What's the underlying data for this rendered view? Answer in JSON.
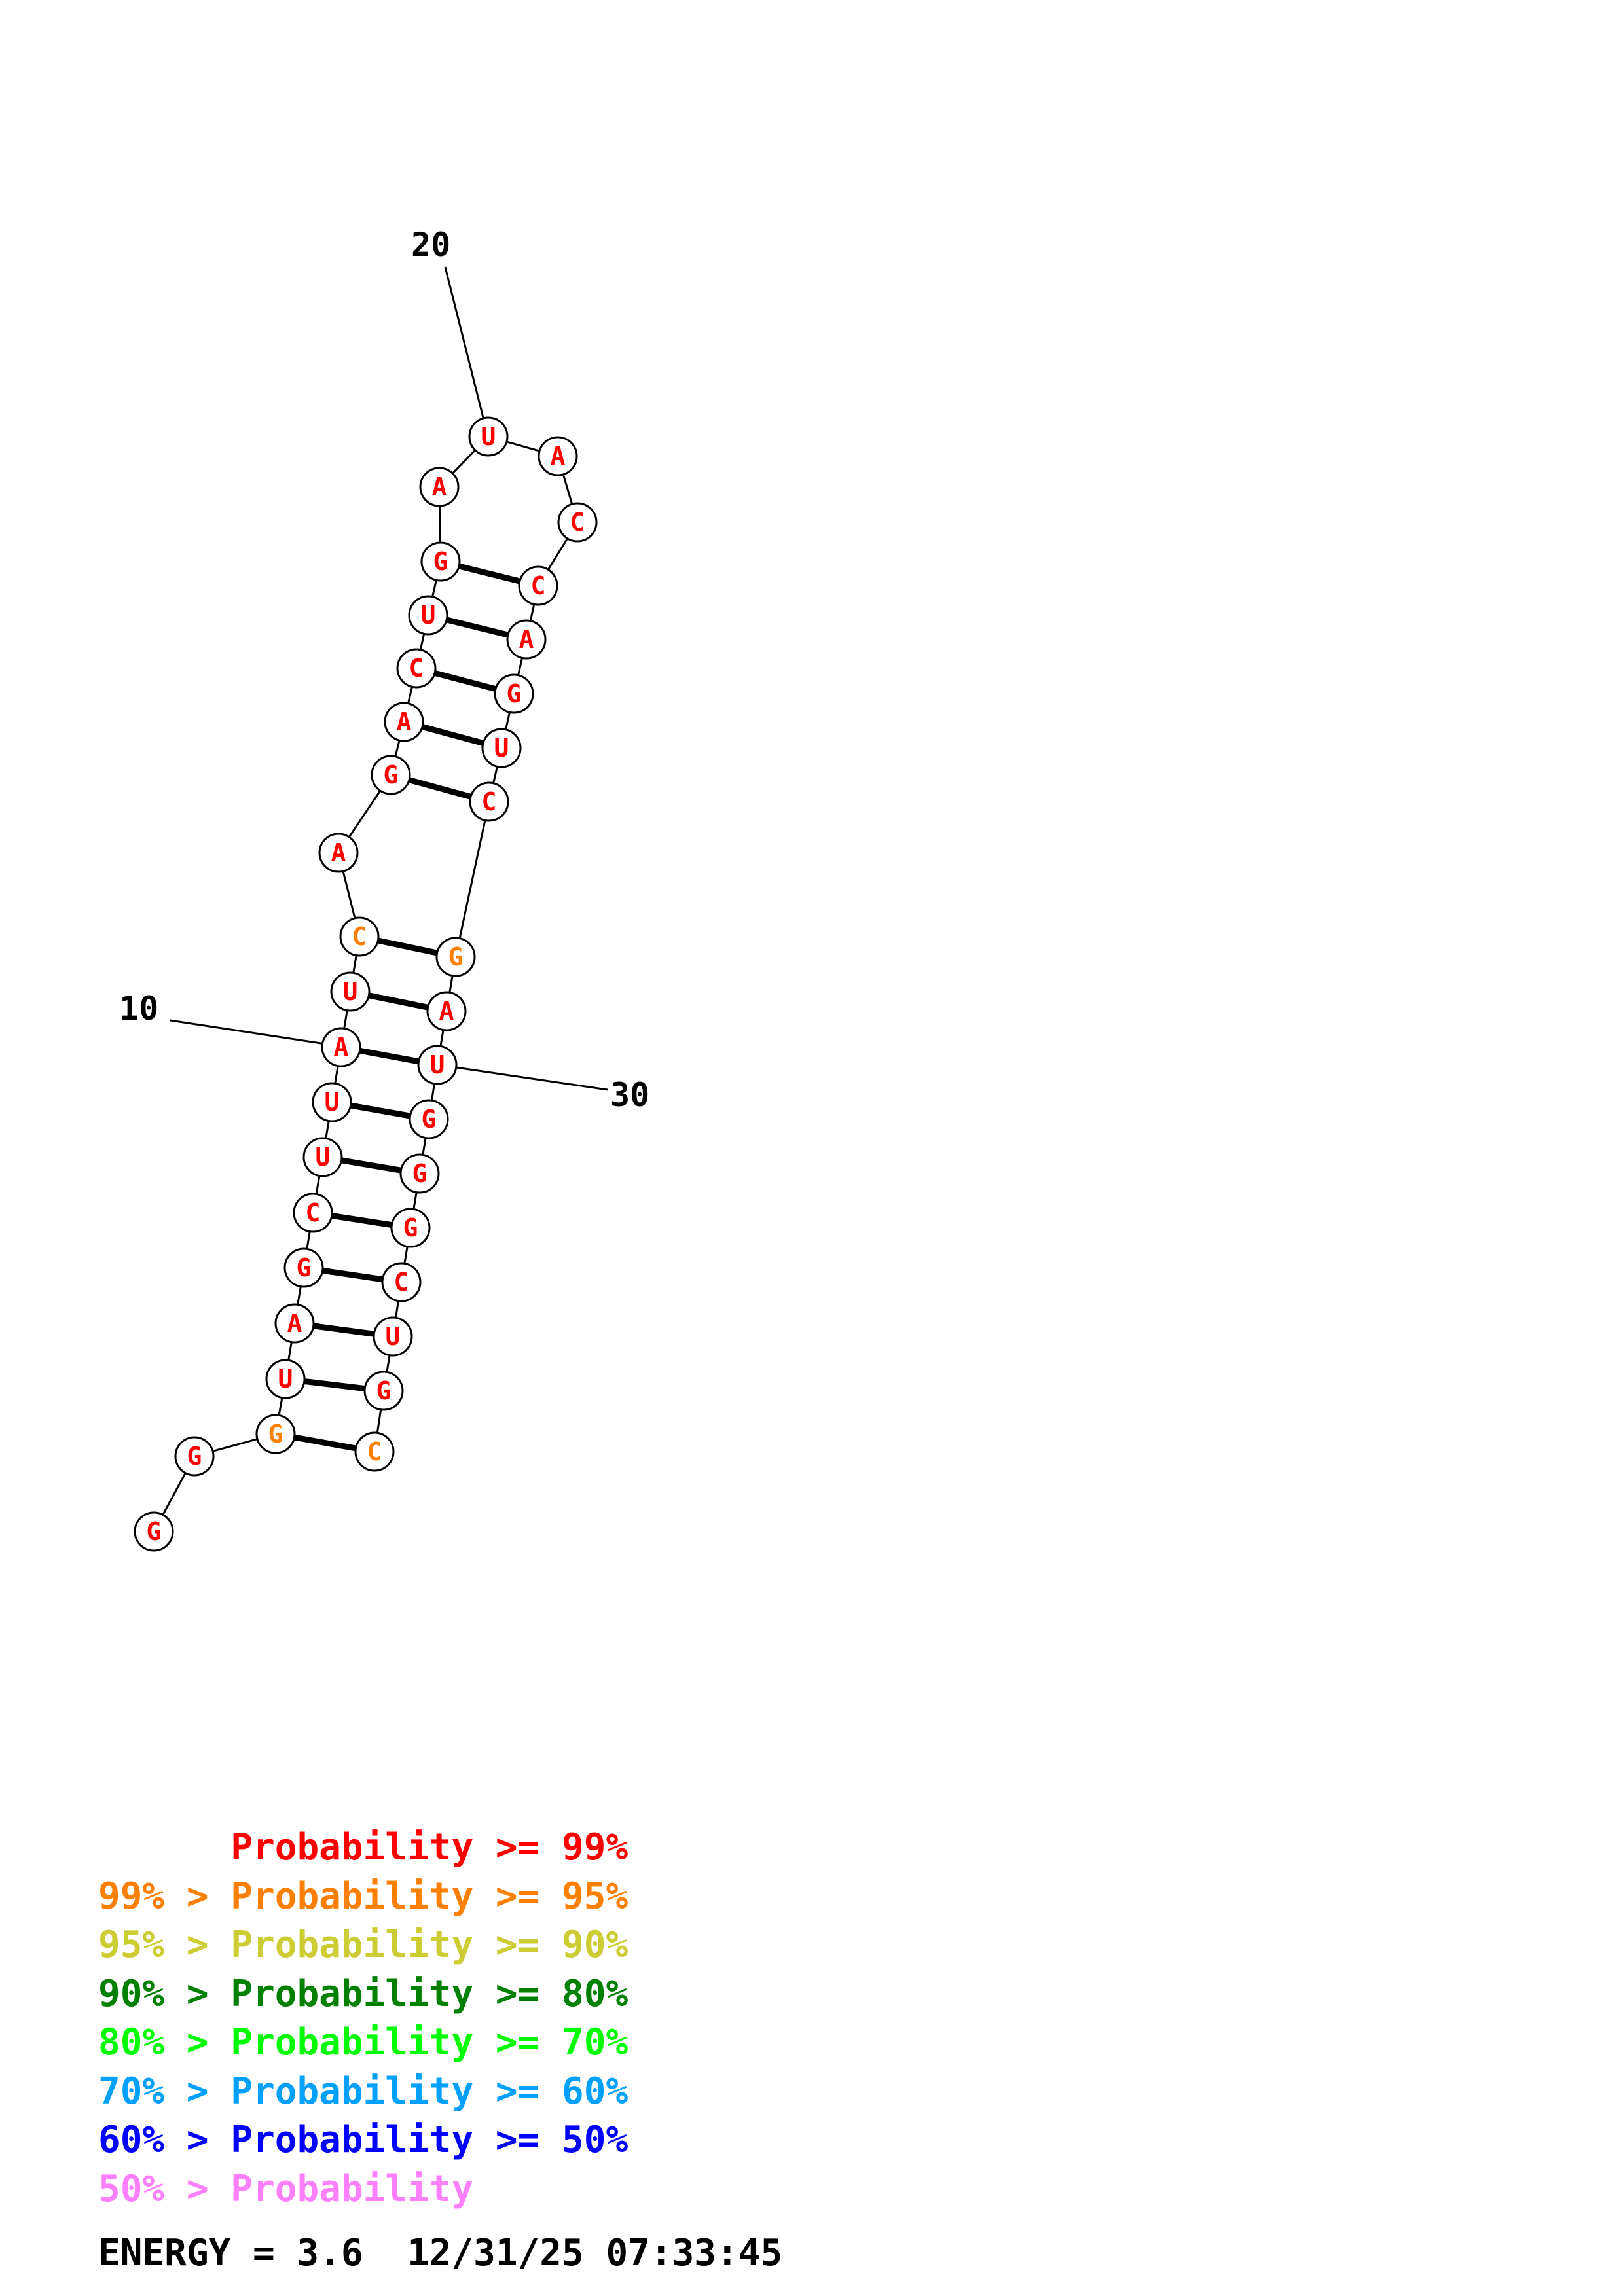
{
  "colors": {
    "p99": "#ff0000",
    "p95": "#ff8000",
    "p90": "#cccc33",
    "p80": "#008000",
    "p70": "#00ff00",
    "p60": "#00a0ff",
    "p50": "#0000ff",
    "plow": "#ff80ff"
  },
  "diagram": {
    "nucleotides": [
      {
        "index": 1,
        "base": "G",
        "prob": "p99"
      },
      {
        "index": 2,
        "base": "G",
        "prob": "p99"
      },
      {
        "index": 3,
        "base": "G",
        "prob": "p95"
      },
      {
        "index": 4,
        "base": "U",
        "prob": "p99"
      },
      {
        "index": 5,
        "base": "A",
        "prob": "p99"
      },
      {
        "index": 6,
        "base": "G",
        "prob": "p99"
      },
      {
        "index": 7,
        "base": "C",
        "prob": "p99"
      },
      {
        "index": 8,
        "base": "U",
        "prob": "p99"
      },
      {
        "index": 9,
        "base": "U",
        "prob": "p99"
      },
      {
        "index": 10,
        "base": "A",
        "prob": "p99"
      },
      {
        "index": 11,
        "base": "U",
        "prob": "p99"
      },
      {
        "index": 12,
        "base": "C",
        "prob": "p95"
      },
      {
        "index": 13,
        "base": "A",
        "prob": "p99"
      },
      {
        "index": 14,
        "base": "G",
        "prob": "p99"
      },
      {
        "index": 15,
        "base": "A",
        "prob": "p99"
      },
      {
        "index": 16,
        "base": "C",
        "prob": "p99"
      },
      {
        "index": 17,
        "base": "U",
        "prob": "p99"
      },
      {
        "index": 18,
        "base": "G",
        "prob": "p99"
      },
      {
        "index": 19,
        "base": "A",
        "prob": "p99"
      },
      {
        "index": 20,
        "base": "U",
        "prob": "p99"
      },
      {
        "index": 21,
        "base": "A",
        "prob": "p99"
      },
      {
        "index": 22,
        "base": "C",
        "prob": "p99"
      },
      {
        "index": 23,
        "base": "C",
        "prob": "p99"
      },
      {
        "index": 24,
        "base": "A",
        "prob": "p99"
      },
      {
        "index": 25,
        "base": "G",
        "prob": "p99"
      },
      {
        "index": 26,
        "base": "U",
        "prob": "p99"
      },
      {
        "index": 27,
        "base": "C",
        "prob": "p99"
      },
      {
        "index": 28,
        "base": "G",
        "prob": "p95"
      },
      {
        "index": 29,
        "base": "A",
        "prob": "p99"
      },
      {
        "index": 30,
        "base": "U",
        "prob": "p99"
      },
      {
        "index": 31,
        "base": "G",
        "prob": "p99"
      },
      {
        "index": 32,
        "base": "G",
        "prob": "p99"
      },
      {
        "index": 33,
        "base": "G",
        "prob": "p99"
      },
      {
        "index": 34,
        "base": "C",
        "prob": "p99"
      },
      {
        "index": 35,
        "base": "U",
        "prob": "p99"
      },
      {
        "index": 36,
        "base": "G",
        "prob": "p99"
      },
      {
        "index": 37,
        "base": "C",
        "prob": "p95"
      }
    ],
    "pairs": [
      [
        3,
        37
      ],
      [
        4,
        36
      ],
      [
        5,
        35
      ],
      [
        6,
        34
      ],
      [
        7,
        33
      ],
      [
        8,
        32
      ],
      [
        9,
        31
      ],
      [
        10,
        30
      ],
      [
        11,
        29
      ],
      [
        12,
        28
      ],
      [
        14,
        27
      ],
      [
        15,
        26
      ],
      [
        16,
        25
      ],
      [
        17,
        24
      ],
      [
        18,
        23
      ]
    ],
    "position_labels": [
      "10",
      "20",
      "30"
    ]
  },
  "legend": [
    {
      "prefix": "",
      "text": "Probability >= 99%",
      "color_key": "p99"
    },
    {
      "prefix": "99% > ",
      "text": "Probability >= 95%",
      "color_key": "p95"
    },
    {
      "prefix": "95% > ",
      "text": "Probability >= 90%",
      "color_key": "p90"
    },
    {
      "prefix": "90% > ",
      "text": "Probability >= 80%",
      "color_key": "p80"
    },
    {
      "prefix": "80% > ",
      "text": "Probability >= 70%",
      "color_key": "p70"
    },
    {
      "prefix": "70% > ",
      "text": "Probability >= 60%",
      "color_key": "p60"
    },
    {
      "prefix": "60% > ",
      "text": "Probability >= 50%",
      "color_key": "p50"
    },
    {
      "prefix": "50% > ",
      "text": "Probability",
      "color_key": "plow"
    }
  ],
  "energy": {
    "label": "ENERGY = 3.6",
    "timestamp": "12/31/25 07:33:45"
  }
}
